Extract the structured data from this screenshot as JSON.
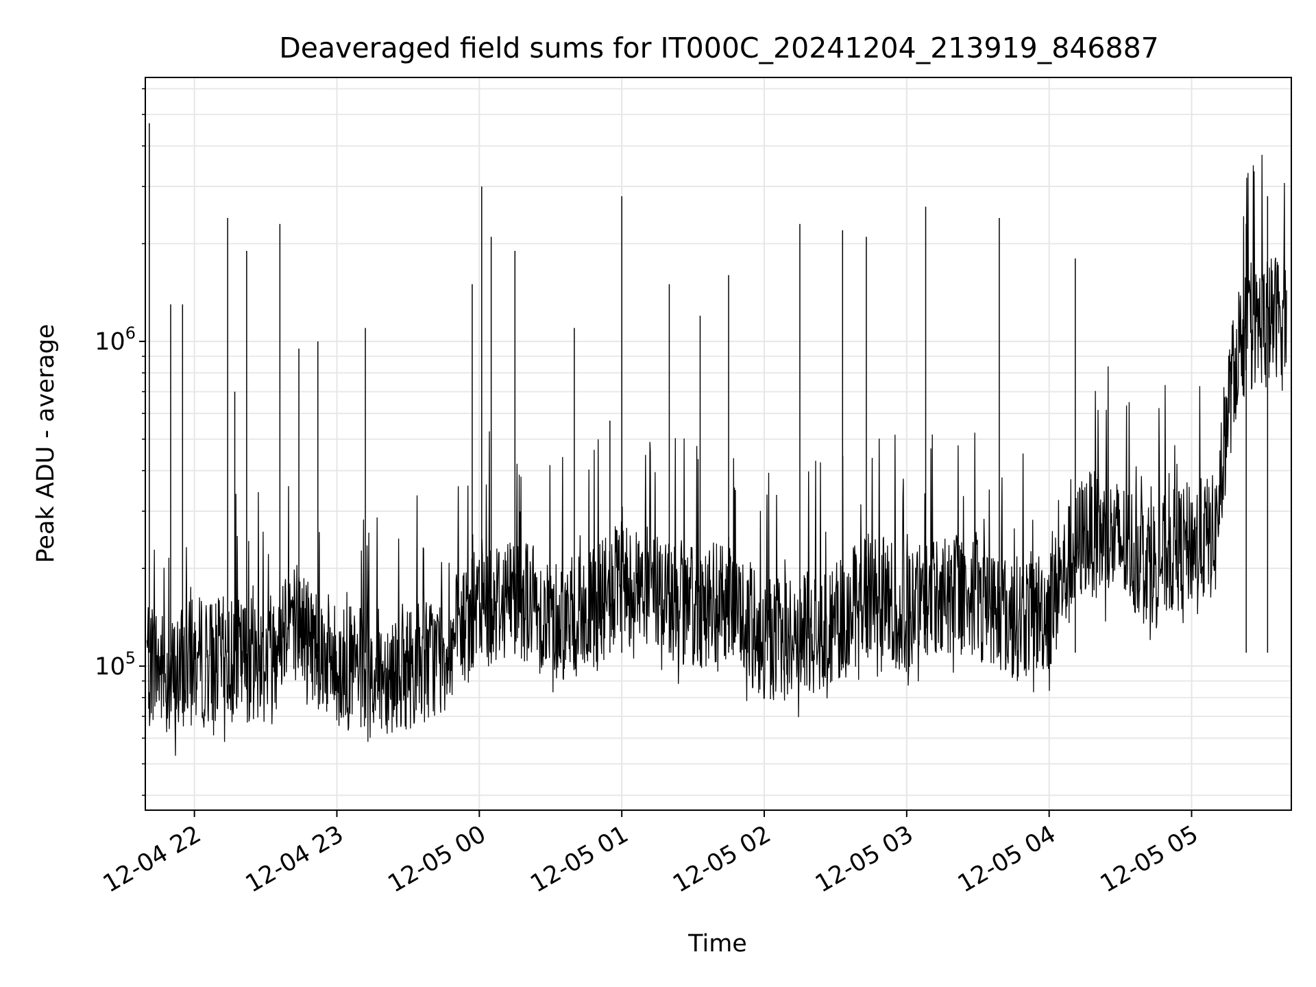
{
  "chart_data": {
    "type": "line",
    "title": "Deaveraged field sums for IT000C_20241204_213919_846887",
    "xlabel": "Time",
    "ylabel": "Peak ADU - average",
    "yscale": "log",
    "xlim": [
      "2024-12-04 21:39:19",
      "2024-12-05 05:42:00"
    ],
    "ylim": [
      36000,
      6500000
    ],
    "grid": true,
    "line_color": "#000000",
    "x_ticks": [
      "12-04 22",
      "12-04 23",
      "12-05 00",
      "12-05 01",
      "12-05 02",
      "12-05 03",
      "12-05 04",
      "12-05 05"
    ],
    "y_ticks": [
      {
        "base": "10",
        "exp": "5"
      },
      {
        "base": "10",
        "exp": "6"
      }
    ],
    "series": [
      {
        "x": [
          "2024-12-04 21:40",
          "2024-12-04 21:50",
          "2024-12-04 22:00",
          "2024-12-04 22:15",
          "2024-12-04 22:30",
          "2024-12-04 22:40",
          "2024-12-04 22:50",
          "2024-12-04 23:00",
          "2024-12-04 23:15",
          "2024-12-04 23:30",
          "2024-12-04 23:45",
          "2024-12-05 00:00",
          "2024-12-05 00:15",
          "2024-12-05 00:30",
          "2024-12-05 00:45",
          "2024-12-05 01:00",
          "2024-12-05 01:15",
          "2024-12-05 01:30",
          "2024-12-05 01:45",
          "2024-12-05 02:00",
          "2024-12-05 02:15",
          "2024-12-05 02:30",
          "2024-12-05 02:45",
          "2024-12-05 03:00",
          "2024-12-05 03:15",
          "2024-12-05 03:30",
          "2024-12-05 03:45",
          "2024-12-05 04:00",
          "2024-12-05 04:15",
          "2024-12-05 04:30",
          "2024-12-05 04:45",
          "2024-12-05 05:00",
          "2024-12-05 05:10",
          "2024-12-05 05:15",
          "2024-12-05 05:20",
          "2024-12-05 05:30",
          "2024-12-05 05:40"
        ],
        "y": [
          110000,
          90000,
          105000,
          105000,
          105000,
          150000,
          120000,
          100000,
          95000,
          100000,
          110000,
          150000,
          170000,
          140000,
          140000,
          180000,
          170000,
          150000,
          160000,
          120000,
          125000,
          135000,
          170000,
          145000,
          170000,
          165000,
          140000,
          150000,
          260000,
          240000,
          210000,
          240000,
          250000,
          600000,
          1000000,
          1150000,
          1250000
        ]
      }
    ],
    "spikes": {
      "x": [
        "2024-12-04 21:41",
        "2024-12-04 21:50",
        "2024-12-04 21:55",
        "2024-12-04 22:14",
        "2024-12-04 22:17",
        "2024-12-04 22:22",
        "2024-12-04 22:36",
        "2024-12-04 22:44",
        "2024-12-04 22:52",
        "2024-12-04 23:12",
        "2024-12-04 23:57",
        "2024-12-05 00:01",
        "2024-12-05 00:05",
        "2024-12-05 00:15",
        "2024-12-05 00:40",
        "2024-12-05 00:55",
        "2024-12-05 01:00",
        "2024-12-05 01:20",
        "2024-12-05 01:33",
        "2024-12-05 01:45",
        "2024-12-05 02:15",
        "2024-12-05 02:33",
        "2024-12-05 02:43",
        "2024-12-05 03:08",
        "2024-12-05 03:39",
        "2024-12-05 04:11",
        "2024-12-05 05:23",
        "2024-12-05 05:32"
      ],
      "y": [
        4700000,
        1300000,
        1300000,
        2400000,
        700000,
        1900000,
        2300000,
        950000,
        1000000,
        1100000,
        1500000,
        3000000,
        2100000,
        1900000,
        1100000,
        570000,
        2800000,
        1500000,
        1200000,
        1600000,
        2300000,
        2200000,
        2100000,
        2600000,
        2400000,
        1800000,
        2300000,
        2800000
      ]
    }
  }
}
